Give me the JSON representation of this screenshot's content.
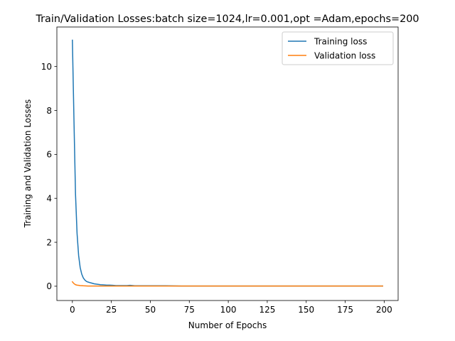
{
  "chart_data": {
    "type": "line",
    "title": "Train/Validation Losses:batch size=1024,lr=0.001,opt =Adam,epochs=200",
    "xlabel": "Number of Epochs",
    "ylabel": "Training and Validation Losses",
    "xlim": [
      -9.95,
      208.95
    ],
    "ylim": [
      -0.65,
      11.8
    ],
    "xticks": [
      0,
      25,
      50,
      75,
      100,
      125,
      150,
      175,
      200
    ],
    "xtick_labels": [
      "0",
      "25",
      "50",
      "75",
      "100",
      "125",
      "150",
      "175",
      "200"
    ],
    "yticks": [
      0,
      2,
      4,
      6,
      8,
      10
    ],
    "ytick_labels": [
      "0",
      "2",
      "4",
      "6",
      "8",
      "10"
    ],
    "grid": false,
    "legend_position": "top-right",
    "series": [
      {
        "name": "Training loss",
        "color": "#1f77b4",
        "x": [
          0,
          1,
          2,
          3,
          4,
          5,
          6,
          7,
          8,
          9,
          10,
          12,
          14,
          16,
          18,
          20,
          22,
          24,
          26,
          28,
          30,
          35,
          37,
          40,
          45,
          50,
          60,
          70,
          80,
          100,
          120,
          140,
          160,
          180,
          190,
          199
        ],
        "y": [
          11.2,
          7.6,
          4.2,
          2.4,
          1.4,
          0.85,
          0.55,
          0.38,
          0.28,
          0.22,
          0.19,
          0.15,
          0.11,
          0.09,
          0.07,
          0.06,
          0.05,
          0.05,
          0.04,
          0.03,
          0.03,
          0.03,
          0.04,
          0.02,
          0.02,
          0.02,
          0.02,
          0.01,
          0.01,
          0.01,
          0.01,
          0.01,
          0.01,
          0.01,
          0.01,
          0.01
        ]
      },
      {
        "name": "Validation loss",
        "color": "#ff7f0e",
        "x": [
          0,
          1,
          2,
          3,
          4,
          5,
          7,
          10,
          15,
          20,
          30,
          50,
          100,
          150,
          199
        ],
        "y": [
          0.2,
          0.12,
          0.07,
          0.05,
          0.04,
          0.03,
          0.02,
          0.01,
          0.01,
          0.01,
          0.01,
          0.01,
          0.01,
          0.01,
          0.01
        ]
      }
    ]
  }
}
